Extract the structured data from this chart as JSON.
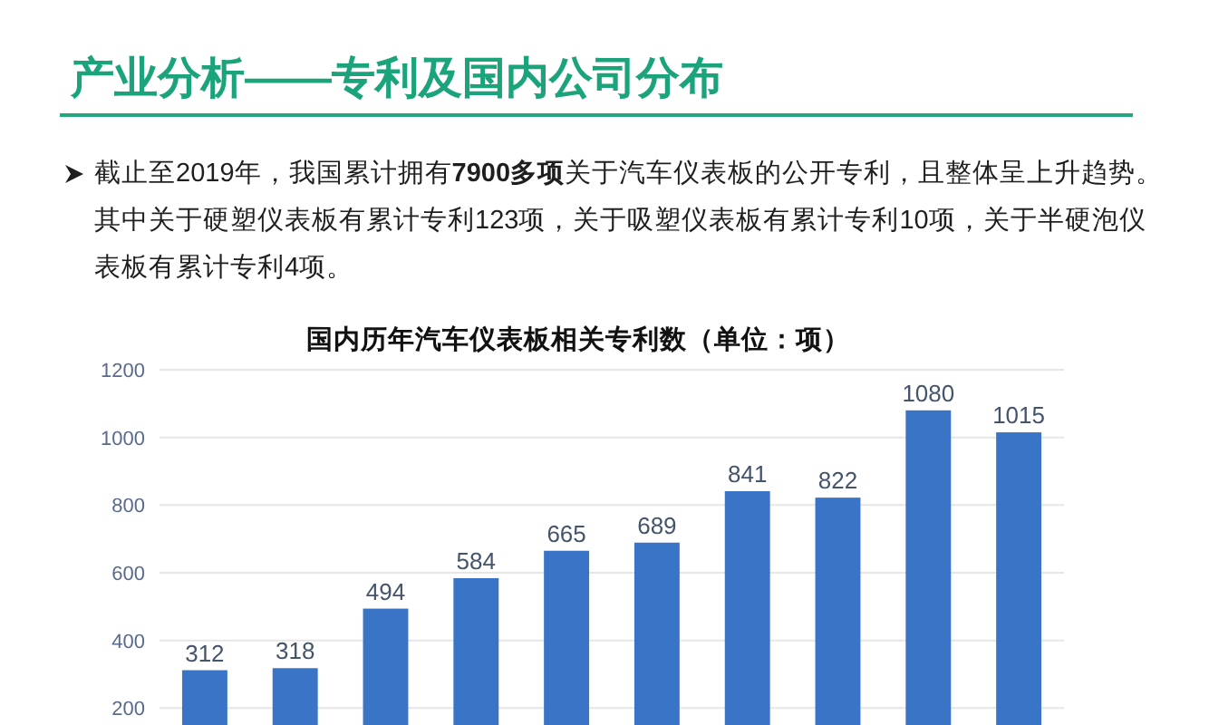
{
  "chart_data": {
    "type": "bar",
    "title": "产业分析——专利及国内公司分布",
    "subtitle": "国内历年汽车仪表板相关专利数（单位：项）",
    "annotations": [
      "截止至2019年，我国累计拥有**7900多项**关于汽车仪表板的公开专利，且整体呈上升趋势。其中关于硬塑仪表板有累计专利123项，关于吸塑仪表板有累计专利10项，关于半硬泡仪表板有累计专利4项。"
    ],
    "categories": [
      null,
      null,
      null,
      null,
      null,
      null,
      null,
      null,
      null,
      null
    ],
    "values": [
      312,
      318,
      494,
      584,
      665,
      689,
      841,
      822,
      1080,
      1015
    ],
    "color": "#3a74c6",
    "ylim": [
      150,
      1200
    ],
    "yticks": [
      200,
      400,
      600,
      800,
      1000,
      1200
    ],
    "grid": "y",
    "data_labels": true,
    "tick_labels": "y"
  }
}
